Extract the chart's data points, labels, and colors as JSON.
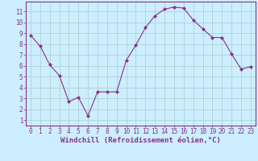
{
  "x": [
    0,
    1,
    2,
    3,
    4,
    5,
    6,
    7,
    8,
    9,
    10,
    11,
    12,
    13,
    14,
    15,
    16,
    17,
    18,
    19,
    20,
    21,
    22,
    23
  ],
  "y": [
    8.8,
    7.8,
    6.1,
    5.1,
    2.7,
    3.1,
    1.4,
    3.6,
    3.6,
    3.6,
    6.5,
    7.9,
    9.5,
    10.6,
    11.2,
    11.4,
    11.3,
    10.2,
    9.4,
    8.6,
    8.6,
    7.1,
    5.7,
    5.9
  ],
  "line_color": "#883388",
  "marker": "D",
  "marker_size": 2.0,
  "bg_color": "#cceeff",
  "grid_color": "#aacccc",
  "xlabel": "Windchill (Refroidissement éolien,°C)",
  "xlim": [
    -0.5,
    23.5
  ],
  "ylim": [
    0.5,
    11.9
  ],
  "xticks": [
    0,
    1,
    2,
    3,
    4,
    5,
    6,
    7,
    8,
    9,
    10,
    11,
    12,
    13,
    14,
    15,
    16,
    17,
    18,
    19,
    20,
    21,
    22,
    23
  ],
  "yticks": [
    1,
    2,
    3,
    4,
    5,
    6,
    7,
    8,
    9,
    10,
    11
  ],
  "tick_label_fontsize": 5.5,
  "xlabel_fontsize": 6.5,
  "axis_color": "#883388",
  "spine_color": "#883388",
  "linewidth": 0.8
}
